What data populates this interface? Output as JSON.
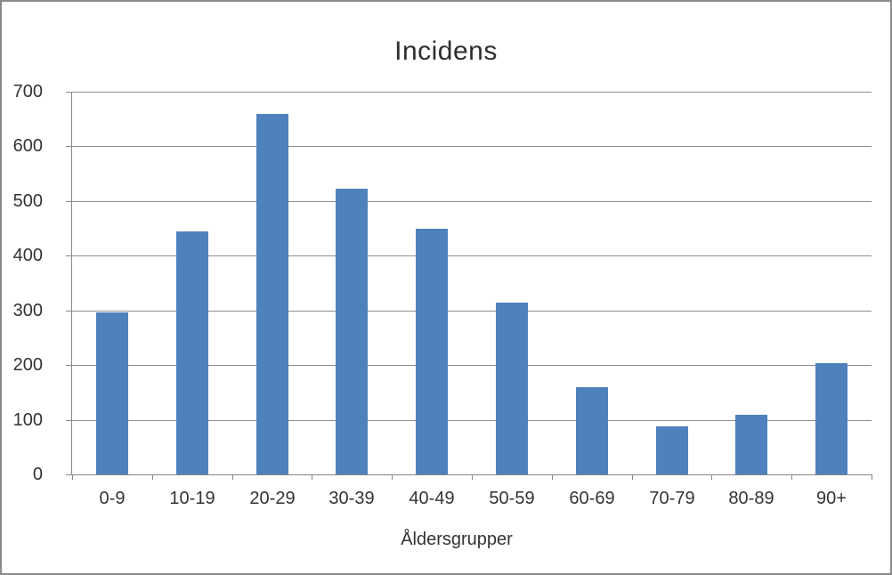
{
  "chart": {
    "title": "Incidens",
    "xlabel": "Åldersgrupper"
  },
  "chart_data": {
    "type": "bar",
    "title": "Incidens",
    "xlabel": "Åldersgrupper",
    "ylabel": "",
    "categories": [
      "0-9",
      "10-19",
      "20-29",
      "30-39",
      "40-49",
      "50-59",
      "60-69",
      "70-79",
      "80-89",
      "90+"
    ],
    "values": [
      296,
      444,
      660,
      522,
      449,
      314,
      160,
      88,
      109,
      204
    ],
    "ylim": [
      0,
      700
    ],
    "ytick_step": 100,
    "yticks": [
      0,
      100,
      200,
      300,
      400,
      500,
      600,
      700
    ],
    "grid": true,
    "legend": false,
    "bar_color": "#4f81bd",
    "axis_color": "#878787",
    "gridline_color": "#8e8e8e",
    "text_color": "#333333",
    "frame_color": "#8a8a8a",
    "background_color": "#ffffff"
  }
}
